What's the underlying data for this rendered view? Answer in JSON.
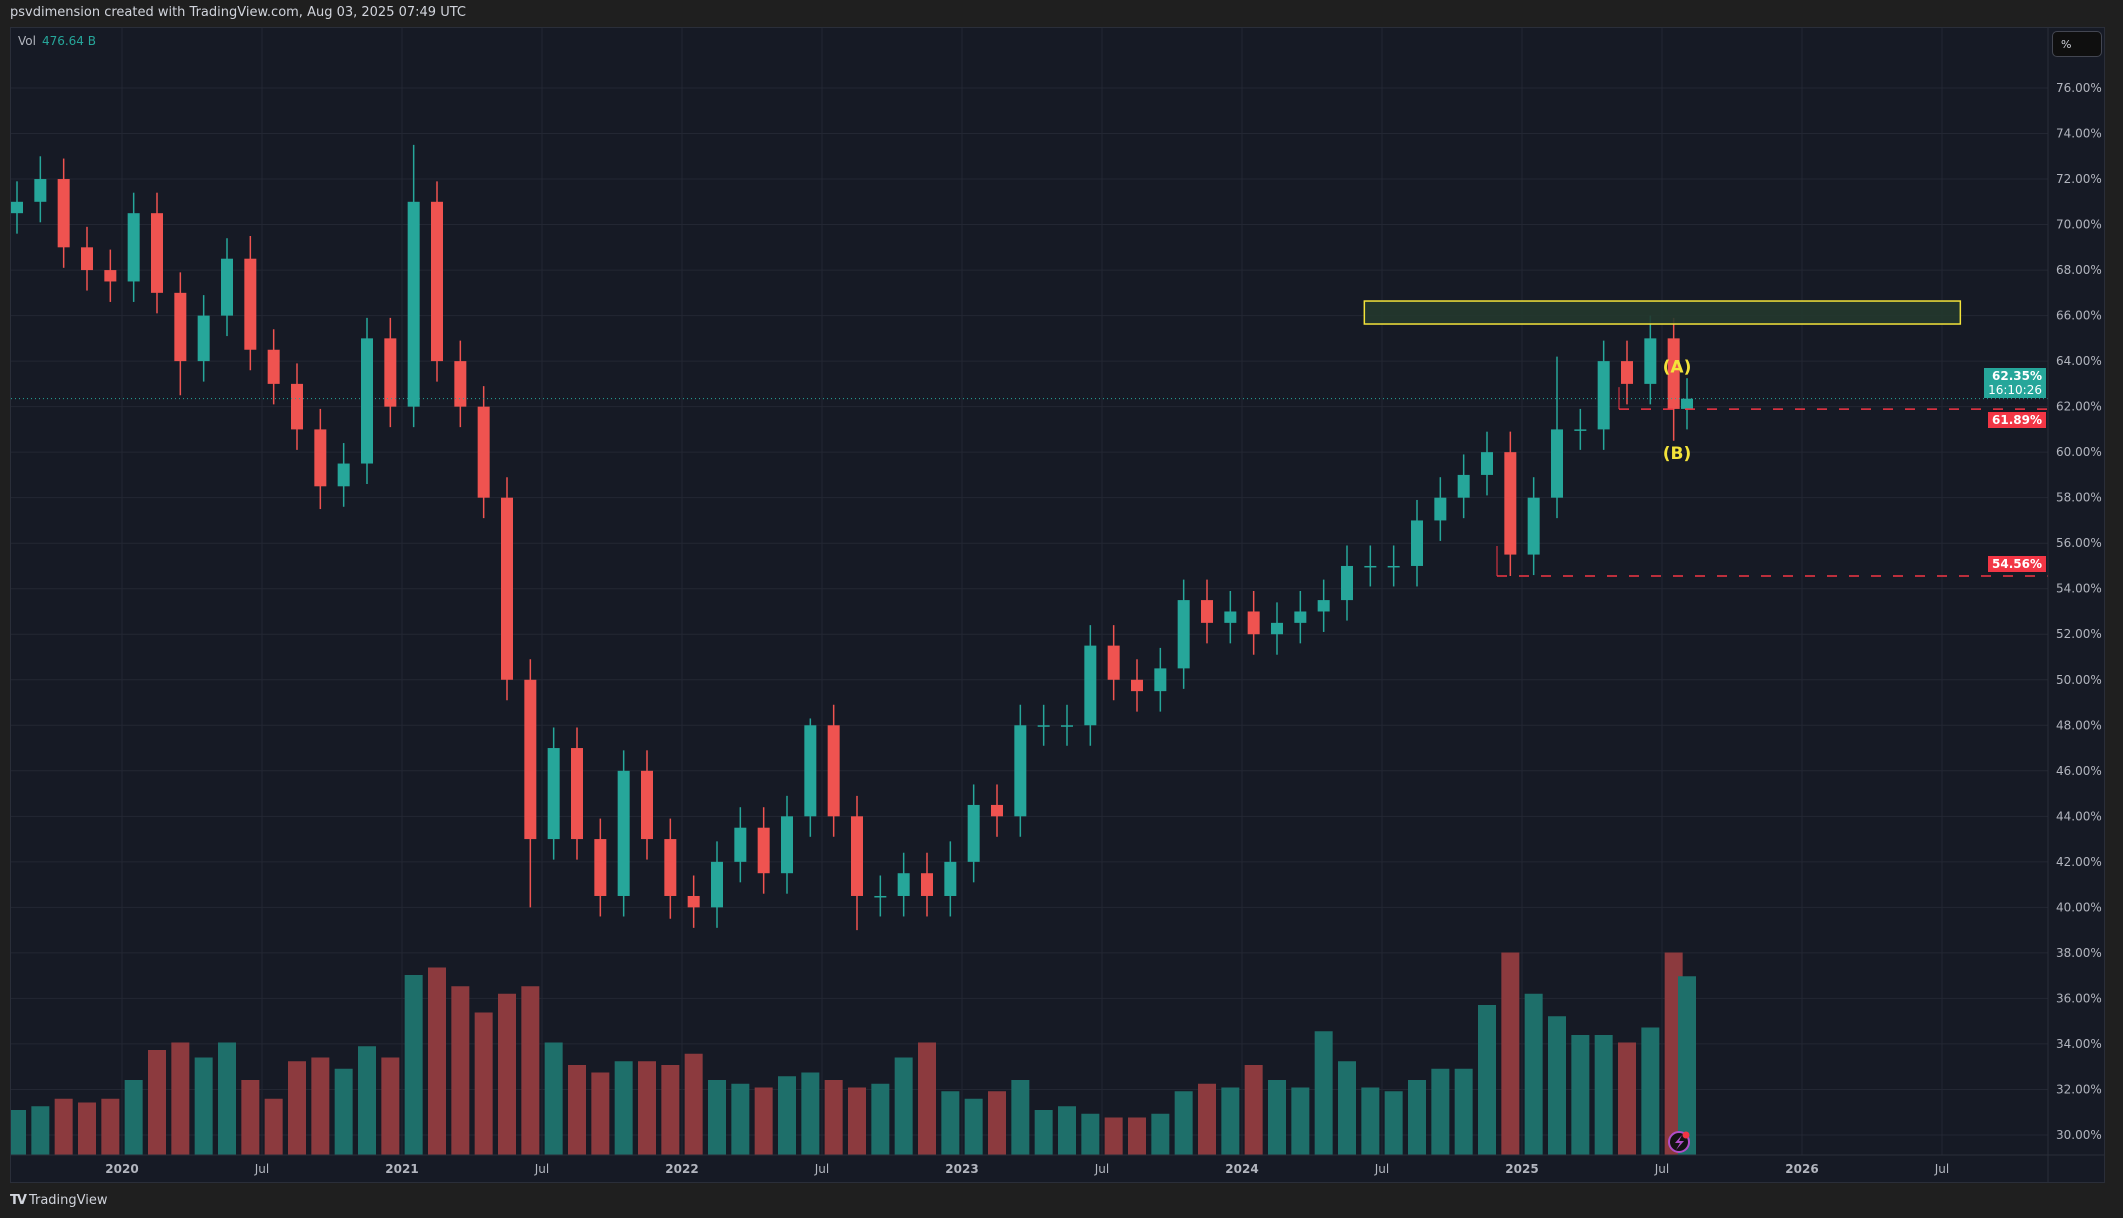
{
  "header": {
    "attribution": "psvdimension created with TradingView.com, Aug 03, 2025 07:49 UTC"
  },
  "volume_legend": {
    "label": "Vol",
    "value": "476.64 B"
  },
  "scale_button": {
    "label": "%"
  },
  "footer": {
    "brand": "TradingView"
  },
  "price_labels": {
    "current": "62.35%",
    "countdown": "16:10:26",
    "level1": "61.89%",
    "level2": "54.56%"
  },
  "colors": {
    "up": "#26a69a",
    "down": "#ef5350",
    "vol_up": "#1e6f6a",
    "vol_down": "#8c3a3e",
    "zone_border": "#f3e33a",
    "zone_fill": "#23392d",
    "level_line": "#f23645",
    "label_yellow": "#f3e33a"
  },
  "chart_data": {
    "type": "candlestick",
    "interval_note_icon": "lightning-icon",
    "y_axis": {
      "unit": "%",
      "ylim": [
        29.5,
        77
      ],
      "ticks": [
        "30.00%",
        "32.00%",
        "34.00%",
        "36.00%",
        "38.00%",
        "40.00%",
        "42.00%",
        "44.00%",
        "46.00%",
        "48.00%",
        "50.00%",
        "52.00%",
        "54.00%",
        "56.00%",
        "58.00%",
        "60.00%",
        "62.00%",
        "64.00%",
        "66.00%",
        "68.00%",
        "70.00%",
        "72.00%",
        "74.00%",
        "76.00%"
      ]
    },
    "x_axis": {
      "ticks": [
        "2020",
        "Jul",
        "2021",
        "Jul",
        "2022",
        "Jul",
        "2023",
        "Jul",
        "2024",
        "Jul",
        "2025",
        "Jul",
        "2026",
        "Jul"
      ]
    },
    "grid": true,
    "start_month": "2019-08",
    "close": [
      71,
      72,
      69,
      68,
      67.5,
      70.5,
      67,
      64,
      66,
      68.5,
      64.5,
      63,
      61,
      58.5,
      59.5,
      65,
      62,
      71,
      64,
      62,
      58,
      50,
      43,
      47,
      43,
      40.5,
      46,
      43,
      40.5,
      40,
      42,
      43.5,
      41.5,
      44,
      48,
      44,
      40.5,
      40.5,
      41.5,
      40.5,
      42,
      44.5,
      44,
      48,
      48,
      48,
      51.5,
      50,
      49.5,
      50.5,
      53.5,
      52.5,
      53,
      52,
      52.5,
      53,
      53.5,
      55,
      55,
      55,
      57,
      58,
      59,
      60,
      55.5,
      58,
      61,
      61,
      64,
      63,
      65,
      61.9,
      62.35
    ],
    "first_open": 70.5,
    "notable_extremes": [
      {
        "month": "2019-09",
        "high": 73
      },
      {
        "month": "2020-03",
        "low": 62.5
      },
      {
        "month": "2020-06",
        "high": 69.5
      },
      {
        "month": "2020-09",
        "low": 57.5
      },
      {
        "month": "2021-01",
        "high": 73.5
      },
      {
        "month": "2021-06",
        "low": 40
      },
      {
        "month": "2021-12",
        "low": 39.5
      },
      {
        "month": "2022-06",
        "high": 48.3
      },
      {
        "month": "2022-08",
        "low": 39
      },
      {
        "month": "2024-12",
        "low": 54.56
      },
      {
        "month": "2025-02",
        "high": 64.2
      },
      {
        "month": "2025-06",
        "high": 66
      },
      {
        "month": "2025-07",
        "low": 60.5
      }
    ],
    "volume_unit": "B",
    "volume": [
      120,
      130,
      150,
      140,
      150,
      200,
      280,
      300,
      260,
      300,
      200,
      150,
      250,
      260,
      230,
      290,
      260,
      480,
      500,
      450,
      380,
      430,
      450,
      300,
      240,
      220,
      250,
      250,
      240,
      270,
      200,
      190,
      180,
      210,
      220,
      200,
      180,
      190,
      260,
      300,
      170,
      150,
      170,
      200,
      120,
      130,
      110,
      100,
      100,
      110,
      170,
      190,
      180,
      240,
      200,
      180,
      330,
      250,
      180,
      170,
      200,
      230,
      230,
      400,
      540,
      430,
      370,
      320,
      320,
      300,
      340,
      540,
      476.64
    ],
    "annotations": {
      "supply_zone": {
        "from_month": "2024-06",
        "to_month": "2026-09",
        "low": 65.63,
        "high": 66.64
      },
      "levels": [
        {
          "value": 61.89,
          "from_month": "2025-05"
        },
        {
          "value": 54.56,
          "from_month": "2024-12"
        }
      ],
      "current_price_line": 62.35,
      "wave_labels": [
        {
          "text": "(A)",
          "month": "2025-07",
          "price": 63.5
        },
        {
          "text": "(B)",
          "month": "2025-07",
          "price": 59.7
        }
      ]
    }
  }
}
